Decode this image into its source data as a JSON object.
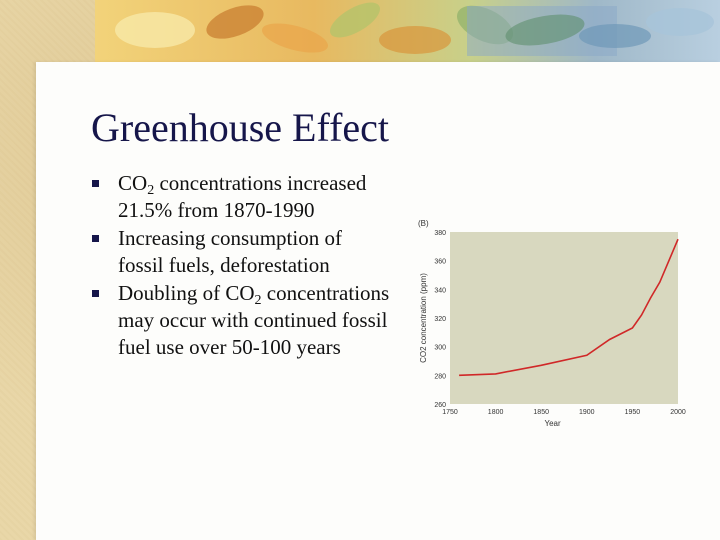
{
  "slide": {
    "title": "Greenhouse Effect",
    "bullets": [
      {
        "pre": "CO",
        "sub": "2",
        "post": " concentrations increased 21.5% from 1870-1990"
      },
      {
        "pre": "Increasing consumption of fossil fuels, deforestation",
        "sub": "",
        "post": ""
      },
      {
        "pre": "Doubling of CO",
        "sub": "2",
        "post": " concentrations may occur with continued fossil fuel use over 50-100 years"
      }
    ]
  },
  "chart_data": {
    "type": "line",
    "panel_label": "(B)",
    "xlabel": "Year",
    "ylabel": "CO2 concentration (ppm)",
    "xlim": [
      1750,
      2000
    ],
    "ylim": [
      260,
      380
    ],
    "xticks": [
      "1750",
      "1800",
      "1850",
      "1900",
      "1950",
      "2000"
    ],
    "yticks": [
      "260",
      "280",
      "300",
      "320",
      "340",
      "360",
      "380"
    ],
    "series": [
      {
        "name": "CO2 concentration",
        "x": [
          1760,
          1800,
          1850,
          1900,
          1925,
          1950,
          1960,
          1970,
          1980,
          1990,
          2000
        ],
        "y": [
          280,
          281,
          287,
          294,
          305,
          313,
          322,
          334,
          345,
          360,
          375
        ]
      }
    ],
    "colors": {
      "line": "#d02828",
      "plot_bg": "#d8d8bf"
    }
  }
}
